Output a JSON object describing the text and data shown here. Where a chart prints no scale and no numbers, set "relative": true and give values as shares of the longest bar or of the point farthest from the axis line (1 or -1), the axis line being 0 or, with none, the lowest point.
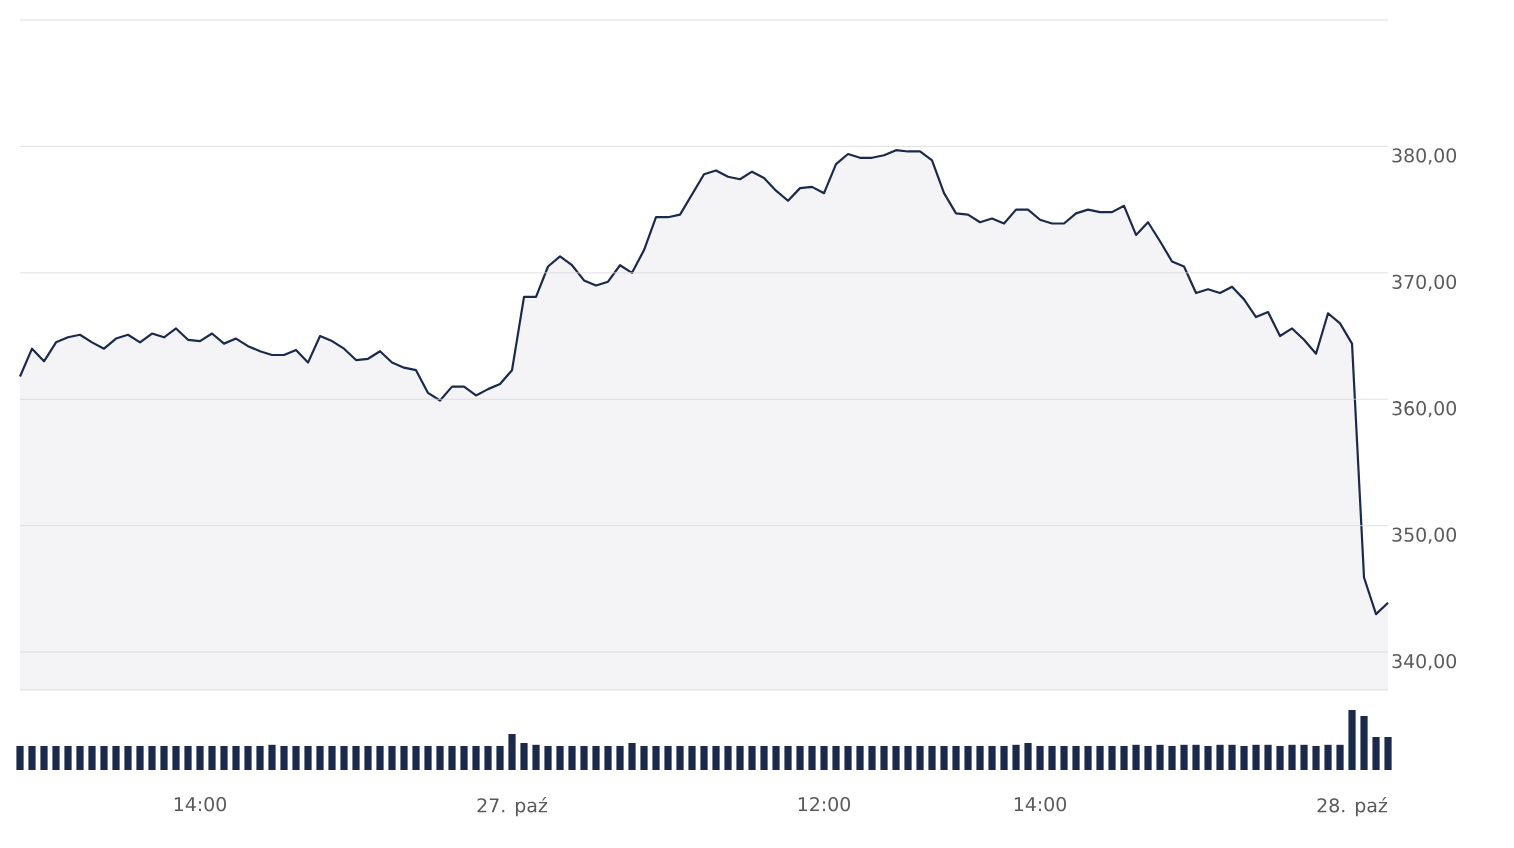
{
  "chart_data": [
    {
      "type": "area",
      "ylim": [
        337,
        390
      ],
      "yticks": [
        {
          "value": 340,
          "label": "340,00"
        },
        {
          "value": 350,
          "label": "350,00"
        },
        {
          "value": 360,
          "label": "360,00"
        },
        {
          "value": 370,
          "label": "370,00"
        },
        {
          "value": 380,
          "label": "380,00"
        },
        {
          "value": 390,
          "label": null
        }
      ],
      "grid": "y",
      "categories": [
        null,
        null,
        null,
        null,
        null,
        null,
        null,
        null,
        null,
        null,
        null,
        null,
        null,
        null,
        null,
        "14:00",
        null,
        null,
        null,
        null,
        null,
        null,
        null,
        null,
        null,
        null,
        null,
        null,
        null,
        null,
        null,
        null,
        null,
        null,
        null,
        null,
        null,
        null,
        null,
        null,
        null,
        "27. paź",
        null,
        null,
        null,
        null,
        null,
        null,
        null,
        null,
        null,
        null,
        null,
        null,
        null,
        null,
        null,
        null,
        null,
        null,
        null,
        null,
        null,
        null,
        null,
        null,
        null,
        "12:00",
        null,
        null,
        null,
        null,
        null,
        null,
        null,
        null,
        null,
        null,
        null,
        null,
        null,
        null,
        null,
        null,
        null,
        "14:00",
        null,
        null,
        null,
        null,
        null,
        null,
        null,
        null,
        null,
        null,
        null,
        null,
        null,
        null,
        null,
        null,
        null,
        null,
        null,
        null,
        null,
        null,
        null,
        null,
        null,
        "28. paź",
        null,
        null,
        null
      ],
      "series": [
        {
          "color": "#1b2a4a",
          "values": [
            361.8,
            364.0,
            363.0,
            364.5,
            364.9,
            365.1,
            364.5,
            364.0,
            364.8,
            365.1,
            364.5,
            365.2,
            364.9,
            365.6,
            364.7,
            364.6,
            365.2,
            364.4,
            364.8,
            364.2,
            363.8,
            363.5,
            363.5,
            363.9,
            362.9,
            365.0,
            364.6,
            364.0,
            363.1,
            363.2,
            363.8,
            362.9,
            362.5,
            362.3,
            360.5,
            359.9,
            361.0,
            361.0,
            360.3,
            360.8,
            361.2,
            362.3,
            368.1,
            368.1,
            370.5,
            371.3,
            370.6,
            369.4,
            369.0,
            369.3,
            370.6,
            370.0,
            371.8,
            374.4,
            374.4,
            374.6,
            376.2,
            377.8,
            378.1,
            377.6,
            377.4,
            378.0,
            377.5,
            376.5,
            375.7,
            376.7,
            376.8,
            376.3,
            378.6,
            379.4,
            379.1,
            379.1,
            379.3,
            379.7,
            379.6,
            379.6,
            378.9,
            376.3,
            374.7,
            374.6,
            374.0,
            374.3,
            373.9,
            375.0,
            375.0,
            374.2,
            373.9,
            373.9,
            374.7,
            375.0,
            374.8,
            374.8,
            375.3,
            373.0,
            374.0,
            372.5,
            370.9,
            370.5,
            368.4,
            368.7,
            368.4,
            368.9,
            367.9,
            366.5,
            366.9,
            365.0,
            365.6,
            364.7,
            363.6,
            366.8,
            366.0,
            364.4,
            345.9,
            343.0,
            343.9
          ]
        }
      ]
    },
    {
      "type": "bar",
      "relative": true,
      "color": "#1b2a4a",
      "categories": [
        null,
        null,
        null,
        null,
        null,
        null,
        null,
        null,
        null,
        null,
        null,
        null,
        null,
        null,
        null,
        null,
        null,
        null,
        null,
        null,
        null,
        null,
        null,
        null,
        null,
        null,
        null,
        null,
        null,
        null,
        null,
        null,
        null,
        null,
        null,
        null,
        null,
        null,
        null,
        null,
        null,
        null,
        null,
        null,
        null,
        null,
        null,
        null,
        null,
        null,
        null,
        null,
        null,
        null,
        null,
        null,
        null,
        null,
        null,
        null,
        null,
        null,
        null,
        null,
        null,
        null,
        null,
        null,
        null,
        null,
        null,
        null,
        null,
        null,
        null,
        null,
        null,
        null,
        null,
        null,
        null,
        null,
        null,
        null,
        null,
        null,
        null,
        null,
        null,
        null,
        null,
        null,
        null,
        null,
        null,
        null,
        null,
        null,
        null,
        null,
        null,
        null,
        null,
        null,
        null,
        null,
        null,
        null,
        null,
        null,
        null,
        null,
        null,
        null,
        null
      ],
      "values": [
        0.4,
        0.4,
        0.4,
        0.4,
        0.4,
        0.4,
        0.4,
        0.4,
        0.4,
        0.4,
        0.4,
        0.4,
        0.4,
        0.4,
        0.4,
        0.4,
        0.4,
        0.4,
        0.4,
        0.4,
        0.4,
        0.42,
        0.4,
        0.4,
        0.4,
        0.4,
        0.4,
        0.4,
        0.4,
        0.4,
        0.4,
        0.4,
        0.4,
        0.4,
        0.4,
        0.4,
        0.4,
        0.4,
        0.4,
        0.4,
        0.4,
        0.6,
        0.45,
        0.42,
        0.4,
        0.4,
        0.4,
        0.4,
        0.4,
        0.4,
        0.4,
        0.45,
        0.4,
        0.4,
        0.4,
        0.4,
        0.4,
        0.4,
        0.4,
        0.4,
        0.4,
        0.4,
        0.4,
        0.4,
        0.4,
        0.4,
        0.4,
        0.4,
        0.4,
        0.4,
        0.4,
        0.4,
        0.4,
        0.4,
        0.4,
        0.4,
        0.4,
        0.4,
        0.4,
        0.4,
        0.4,
        0.4,
        0.4,
        0.42,
        0.45,
        0.4,
        0.4,
        0.4,
        0.4,
        0.4,
        0.4,
        0.4,
        0.4,
        0.42,
        0.4,
        0.42,
        0.4,
        0.42,
        0.42,
        0.4,
        0.42,
        0.42,
        0.4,
        0.42,
        0.42,
        0.4,
        0.42,
        0.42,
        0.4,
        0.42,
        0.42,
        1,
        0.9,
        0.55,
        0.55
      ]
    }
  ]
}
